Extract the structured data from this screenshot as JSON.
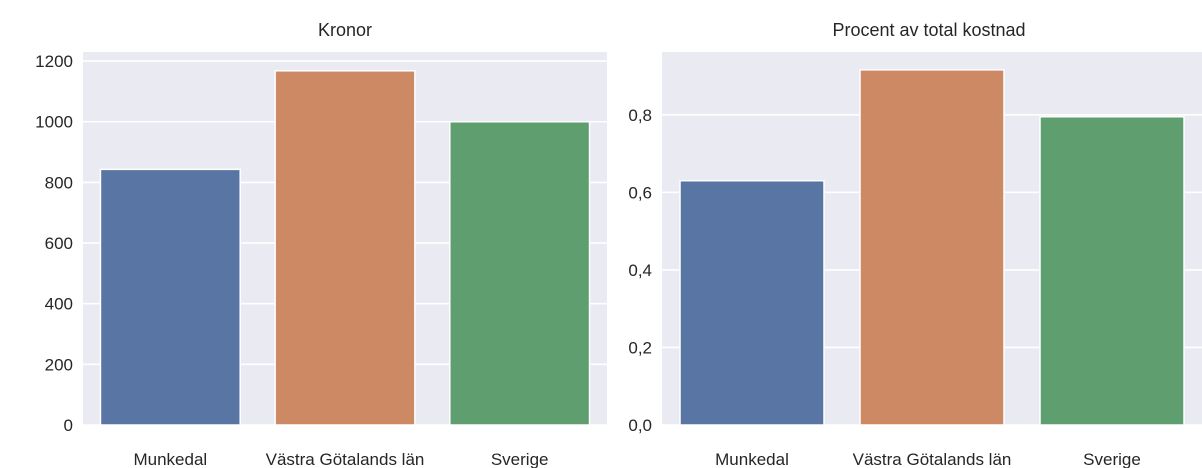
{
  "chart_data": [
    {
      "type": "bar",
      "title": "Kronor",
      "xlabel": "",
      "ylabel": "",
      "categories": [
        "Munkedal",
        "Västra Götalands län",
        "Sverige"
      ],
      "values": [
        843,
        1168,
        1000
      ],
      "ylim": [
        0,
        1230
      ],
      "yticks": [
        0,
        200,
        400,
        600,
        800,
        1000,
        1200
      ],
      "ytick_labels": [
        "0",
        "200",
        "400",
        "600",
        "800",
        "1000",
        "1200"
      ],
      "grid": true,
      "legend": "none"
    },
    {
      "type": "bar",
      "title": "Procent av total kostnad",
      "xlabel": "",
      "ylabel": "",
      "categories": [
        "Munkedal",
        "Västra Götalands län",
        "Sverige"
      ],
      "values": [
        0.63,
        0.916,
        0.795
      ],
      "ylim": [
        0,
        0.962
      ],
      "yticks": [
        0.0,
        0.2,
        0.4,
        0.6,
        0.8
      ],
      "ytick_labels": [
        "0,0",
        "0,2",
        "0,4",
        "0,6",
        "0,8"
      ],
      "grid": true,
      "legend": "none"
    }
  ],
  "colors": {
    "plot_background": "#eaeaf2",
    "grid": "#ffffff",
    "bars": [
      "#5875a4",
      "#cc8963",
      "#5f9e6e"
    ],
    "text": "#262626"
  }
}
